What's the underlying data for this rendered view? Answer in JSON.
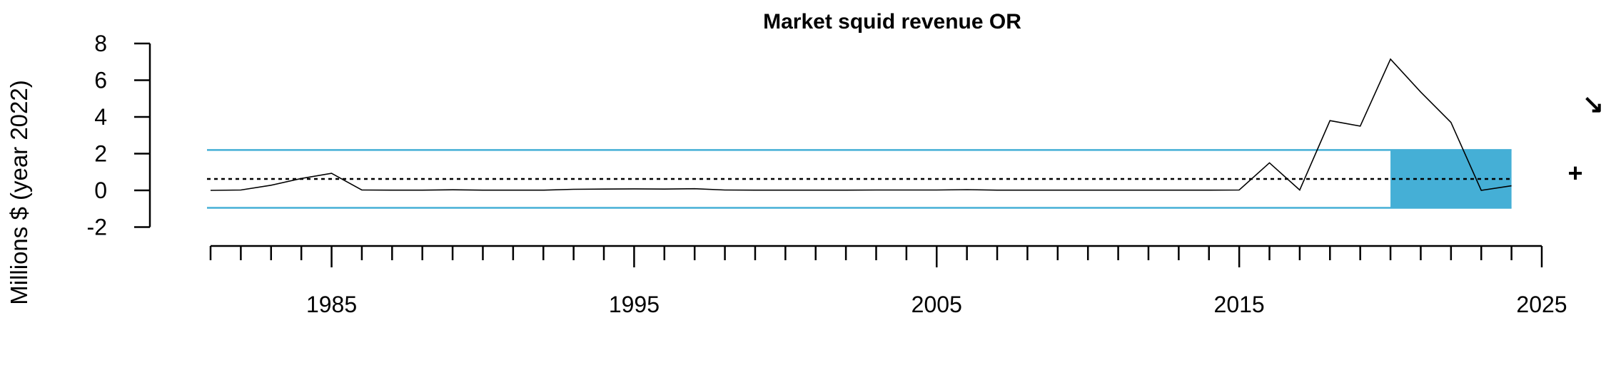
{
  "chart_data": {
    "type": "line",
    "title": "Market squid revenue OR",
    "ylabel": "Millions $ (year 2022)",
    "xlabel": "",
    "xlim": [
      1981,
      2025
    ],
    "ylim": [
      -2,
      8
    ],
    "x_ticks": [
      1985,
      1995,
      2005,
      2015,
      2025
    ],
    "y_ticks": [
      -2,
      0,
      2,
      4,
      6,
      8
    ],
    "series": [
      {
        "x": [
          1981,
          1982,
          1983,
          1984,
          1985,
          1986,
          1987,
          1988,
          1989,
          1990,
          1991,
          1992,
          1993,
          1994,
          1995,
          1996,
          1997,
          1998,
          1999,
          2000,
          2001,
          2002,
          2003,
          2004,
          2005,
          2006,
          2007,
          2008,
          2009,
          2010,
          2011,
          2012,
          2013,
          2014,
          2015,
          2016,
          2017,
          2018,
          2019,
          2020,
          2021,
          2022,
          2023,
          2024
        ],
        "values": [
          0.0,
          0.02,
          0.28,
          0.65,
          0.93,
          0.02,
          0.01,
          0.01,
          0.03,
          0.01,
          0.01,
          0.01,
          0.06,
          0.07,
          0.08,
          0.07,
          0.09,
          0.02,
          0.01,
          0.01,
          0.01,
          0.01,
          0.02,
          0.02,
          0.02,
          0.04,
          0.01,
          0.01,
          0.01,
          0.01,
          0.01,
          0.01,
          0.01,
          0.01,
          0.02,
          1.5,
          0.02,
          3.8,
          3.5,
          7.15,
          5.35,
          3.7,
          0.0,
          0.25
        ]
      }
    ],
    "mean": 0.62,
    "upper_band": 2.2,
    "lower_band": -0.95,
    "highlight_range": [
      2020,
      2024
    ],
    "colors": {
      "band": "#45afd6",
      "line": "#000000"
    },
    "trend_symbol": "↘",
    "mean_symbol": "+"
  }
}
